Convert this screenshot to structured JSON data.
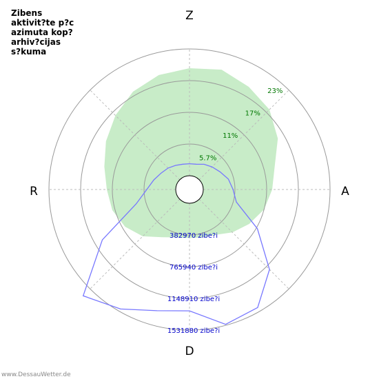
{
  "chart_data": {
    "type": "polar",
    "title": "Zibens\naktivit?te p?c\nazimuta kop?\narhiv?cijas\ns?kuma",
    "directions": {
      "north": "Z",
      "east": "A",
      "south": "D",
      "west": "R"
    },
    "rings": [
      {
        "pct_label": "5.7%",
        "count_label": "382970 zibe?i"
      },
      {
        "pct_label": "11%",
        "count_label": "765940 zibe?i"
      },
      {
        "pct_label": "17%",
        "count_label": "1148910 zibe?i"
      },
      {
        "pct_label": "23%",
        "count_label": "1531880 zibe?i"
      }
    ],
    "area_series": {
      "color": "#c8ecc8",
      "unit": "percent",
      "values": [
        {
          "azimuth": 0,
          "value": 19.5
        },
        {
          "azimuth": 15,
          "value": 20.0
        },
        {
          "azimuth": 30,
          "value": 19.0
        },
        {
          "azimuth": 45,
          "value": 18.0
        },
        {
          "azimuth": 60,
          "value": 16.0
        },
        {
          "azimuth": 75,
          "value": 13.5
        },
        {
          "azimuth": 90,
          "value": 12.5
        },
        {
          "azimuth": 105,
          "value": 11.5
        },
        {
          "azimuth": 120,
          "value": 10.0
        },
        {
          "azimuth": 135,
          "value": 8.5
        },
        {
          "azimuth": 150,
          "value": 7.0
        },
        {
          "azimuth": 165,
          "value": 6.5
        },
        {
          "azimuth": 180,
          "value": 6.3
        },
        {
          "azimuth": 195,
          "value": 6.5
        },
        {
          "azimuth": 210,
          "value": 7.5
        },
        {
          "azimuth": 225,
          "value": 9.5
        },
        {
          "azimuth": 240,
          "value": 11.0
        },
        {
          "azimuth": 255,
          "value": 12.0
        },
        {
          "azimuth": 270,
          "value": 12.5
        },
        {
          "azimuth": 285,
          "value": 13.5
        },
        {
          "azimuth": 300,
          "value": 15.0
        },
        {
          "azimuth": 315,
          "value": 16.5
        },
        {
          "azimuth": 330,
          "value": 18.0
        },
        {
          "azimuth": 345,
          "value": 19.0
        }
      ]
    },
    "line_series": {
      "color": "#7777ff",
      "unit": "strikes",
      "values": [
        {
          "azimuth": 0,
          "value": 145000
        },
        {
          "azimuth": 15,
          "value": 150000
        },
        {
          "azimuth": 30,
          "value": 185000
        },
        {
          "azimuth": 45,
          "value": 220000
        },
        {
          "azimuth": 60,
          "value": 260000
        },
        {
          "azimuth": 75,
          "value": 320000
        },
        {
          "azimuth": 90,
          "value": 360000
        },
        {
          "azimuth": 105,
          "value": 420000
        },
        {
          "azimuth": 120,
          "value": 780000
        },
        {
          "azimuth": 135,
          "value": 1200000
        },
        {
          "azimuth": 150,
          "value": 1480000
        },
        {
          "azimuth": 165,
          "value": 1520000
        },
        {
          "azimuth": 180,
          "value": 1300000
        },
        {
          "azimuth": 195,
          "value": 1350000
        },
        {
          "azimuth": 210,
          "value": 1500000
        },
        {
          "azimuth": 225,
          "value": 1650000
        },
        {
          "azimuth": 240,
          "value": 1050000
        },
        {
          "azimuth": 255,
          "value": 500000
        },
        {
          "azimuth": 270,
          "value": 350000
        },
        {
          "azimuth": 285,
          "value": 280000
        },
        {
          "azimuth": 300,
          "value": 230000
        },
        {
          "azimuth": 315,
          "value": 200000
        },
        {
          "azimuth": 330,
          "value": 170000
        },
        {
          "azimuth": 345,
          "value": 150000
        }
      ]
    }
  },
  "footer": "www.DessauWetter.de",
  "colors": {
    "ring": "#999999",
    "grid": "#bbbbbb",
    "pct_text": "#007700",
    "count_text": "#0000cc"
  }
}
